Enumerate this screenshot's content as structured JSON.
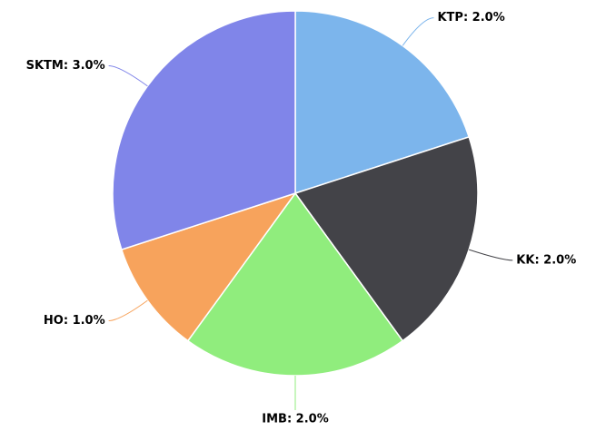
{
  "chart_data": {
    "type": "pie",
    "values": [
      2,
      2,
      2,
      1,
      3
    ],
    "value_labels": [
      "KTP: 2.0%",
      "KK: 2.0%",
      "IMB: 2.0%",
      "HO: 1.0%",
      "SKTM: 3.0%"
    ],
    "colors": [
      "#7cb5ec",
      "#434348",
      "#90ed7d",
      "#f7a35c",
      "#8085e9"
    ]
  }
}
